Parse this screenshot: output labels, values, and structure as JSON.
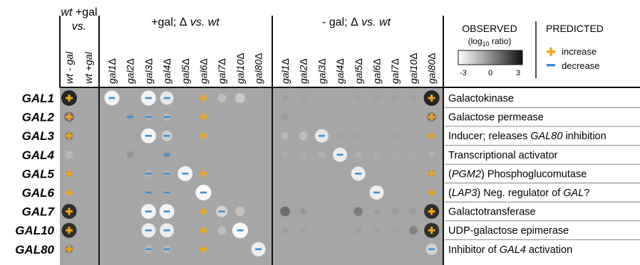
{
  "headers": {
    "wt_group_line1_em": "wt",
    "wt_group_line1_rest": " +gal",
    "wt_group_line2": "vs.",
    "plus_gal_group_pre": "+gal; ",
    "plus_gal_group_delta": "Δ",
    "plus_gal_group_post": " vs. wt",
    "minus_gal_group_pre": "- gal; ",
    "minus_gal_group_delta": "Δ",
    "minus_gal_group_post": " vs. wt"
  },
  "legend": {
    "observed_title": "OBSERVED",
    "observed_sub_pre": "(log",
    "observed_sub_sub": "10",
    "observed_sub_post": " ratio)",
    "scale_ticks": [
      "-3",
      "0",
      "3"
    ],
    "predicted_title": "PREDICTED",
    "increase_label": "increase",
    "decrease_label": "decrease",
    "increase_color": "#f2a516",
    "decrease_color": "#3a8fd6"
  },
  "chart_data": {
    "type": "heatmap",
    "value_range": [
      -3,
      3
    ],
    "colormap": "white(-3) to black(+3), mid gray at 0",
    "columns": [
      "wt - gal",
      "wt +gal",
      "gal1Δ",
      "gal2Δ",
      "gal3Δ",
      "gal4Δ",
      "gal5Δ",
      "gal6Δ",
      "gal7Δ",
      "gal10Δ",
      "gal80Δ",
      "gal1Δ",
      "gal2Δ",
      "gal3Δ",
      "gal4Δ",
      "gal5Δ",
      "gal6Δ",
      "gal7Δ",
      "gal10Δ",
      "gal80Δ"
    ],
    "column_groups": [
      {
        "name": "wt",
        "span": [
          0,
          1
        ]
      },
      {
        "name": "+gal",
        "span": [
          2,
          10
        ]
      },
      {
        "name": "-gal",
        "span": [
          11,
          19
        ]
      }
    ],
    "rows": [
      {
        "gene": "GAL1",
        "description": [
          "Galactokinase"
        ],
        "values": [
          2.8,
          0,
          -2.6,
          0,
          -2.6,
          -2.2,
          0,
          0,
          -0.8,
          -1.2,
          0,
          0.2,
          0.1,
          0,
          0,
          0.1,
          0.1,
          0.1,
          0.1,
          2.8
        ],
        "predicted": [
          "+",
          "",
          "-",
          "",
          "-",
          "-",
          "",
          "+",
          "",
          "",
          "",
          "",
          "",
          "",
          "",
          "",
          "",
          "",
          "",
          "+"
        ]
      },
      {
        "gene": "GAL2",
        "description": [
          "Galactose permease"
        ],
        "values": [
          1.2,
          0,
          0,
          0.2,
          -0.4,
          -0.6,
          0,
          0,
          0,
          0,
          0,
          0.2,
          0,
          0,
          0,
          0,
          0,
          0,
          0,
          1.0
        ],
        "predicted": [
          "+",
          "",
          "",
          "-",
          "-",
          "-",
          "",
          "+",
          "",
          "",
          "",
          "",
          "",
          "",
          "",
          "",
          "",
          "",
          "",
          "+"
        ]
      },
      {
        "gene": "GAL3",
        "description": [
          "Inducer; releases ",
          {
            "em": "GAL80"
          },
          " inhibition"
        ],
        "values": [
          0.8,
          0,
          0,
          0,
          -2.6,
          -1.4,
          0,
          0,
          0,
          0,
          0,
          -0.6,
          -0.8,
          -2.2,
          0.1,
          0.1,
          0.1,
          0.1,
          0,
          0.4
        ],
        "predicted": [
          "+",
          "",
          "",
          "",
          "-",
          "-",
          "",
          "+",
          "",
          "",
          "",
          "",
          "",
          "-",
          "",
          "",
          "",
          "",
          "",
          "+"
        ]
      },
      {
        "gene": "GAL4",
        "description": [
          "Transcriptional activator"
        ],
        "values": [
          -0.6,
          0,
          0,
          0.4,
          0,
          0.3,
          0,
          0,
          0,
          0,
          0,
          -0.2,
          -0.2,
          -0.4,
          -2.4,
          -0.3,
          -0.2,
          -0.1,
          -0.1,
          -0.3
        ],
        "predicted": [
          "",
          "",
          "",
          "",
          "",
          "-",
          "",
          "",
          "",
          "",
          "",
          "",
          "",
          "",
          "-",
          "",
          "",
          "",
          "",
          ""
        ]
      },
      {
        "gene": "GAL5",
        "description": [
          {
            "paren": "PGM2"
          },
          " Phosphoglucomutase"
        ],
        "values": [
          0.4,
          0,
          0,
          0,
          -0.4,
          -0.4,
          -2.6,
          0,
          0,
          0,
          0,
          0,
          0,
          0,
          0,
          -2.4,
          0,
          0,
          0,
          0.4
        ],
        "predicted": [
          "+",
          "",
          "",
          "",
          "-",
          "-",
          "-",
          "+",
          "",
          "",
          "",
          "",
          "",
          "",
          "",
          "-",
          "",
          "",
          "",
          "+"
        ]
      },
      {
        "gene": "GAL6",
        "description": [
          {
            "paren": "LAP3"
          },
          " Neg. regulator of ",
          {
            "em": "GAL"
          },
          "?"
        ],
        "values": [
          0.2,
          0,
          0,
          0,
          -0.2,
          -0.2,
          0,
          -2.8,
          0,
          0,
          0,
          0,
          0,
          0,
          0,
          0,
          -2.4,
          0,
          0,
          0.2
        ],
        "predicted": [
          "+",
          "",
          "",
          "",
          "-",
          "-",
          "",
          "-",
          "",
          "",
          "",
          "",
          "",
          "",
          "",
          "",
          "-",
          "",
          "",
          "+"
        ]
      },
      {
        "gene": "GAL7",
        "description": [
          "Galactotransferase"
        ],
        "values": [
          2.6,
          0,
          0,
          0,
          -2.6,
          -2.6,
          0,
          0,
          -1.6,
          -1.0,
          0,
          1.2,
          0.3,
          0,
          0,
          0.9,
          0.2,
          0.2,
          0.2,
          2.6
        ],
        "predicted": [
          "+",
          "",
          "",
          "",
          "-",
          "-",
          "",
          "+",
          "-",
          "",
          "",
          "",
          "",
          "",
          "",
          "",
          "",
          "",
          "",
          "+"
        ]
      },
      {
        "gene": "GAL10",
        "description": [
          "UDP-galactose epimerase"
        ],
        "values": [
          2.6,
          0,
          0,
          0,
          -2.4,
          -2.4,
          0,
          0,
          -0.8,
          -2.8,
          0,
          0.2,
          0.1,
          0,
          0,
          0.2,
          0.1,
          0.1,
          0.8,
          2.6
        ],
        "predicted": [
          "+",
          "",
          "",
          "",
          "-",
          "-",
          "",
          "+",
          "",
          "-",
          "",
          "",
          "",
          "",
          "",
          "",
          "",
          "",
          "",
          "+"
        ]
      },
      {
        "gene": "GAL80",
        "description": [
          "Inhibitor of ",
          {
            "em": "GAL4"
          },
          " activation"
        ],
        "values": [
          0.8,
          0,
          0,
          0,
          -0.6,
          -0.6,
          0,
          0,
          0,
          0,
          -2.4,
          0,
          0,
          0,
          0,
          0,
          0,
          0,
          0,
          -1.6
        ],
        "predicted": [
          "+",
          "",
          "",
          "",
          "-",
          "-",
          "",
          "+",
          "",
          "",
          "-",
          "",
          "",
          "",
          "",
          "",
          "",
          "",
          "",
          "-"
        ]
      }
    ]
  }
}
